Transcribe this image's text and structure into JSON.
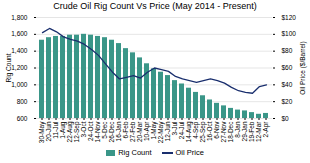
{
  "chart_data": {
    "type": "bar",
    "title": "Crude Oil Rig Count Vs Price (May 2014 - Present)",
    "categories": [
      "30-May",
      "20-Jun",
      "11-Jul",
      "1-Aug",
      "22-Aug",
      "12-Sep",
      "3-Oct",
      "24-Oct",
      "14-Nov",
      "5-Dec",
      "26-Dec",
      "16-Jan",
      "6-Feb",
      "27-Feb",
      "20-Mar",
      "10-Apr",
      "1-May",
      "22-May",
      "12-Jun",
      "3-Jul",
      "24-Jul",
      "14-Aug",
      "4-Sep",
      "25-Sep",
      "16-Oct",
      "6-Nov",
      "27-Nov",
      "18-Dec",
      "8-Jan",
      "29-Jan",
      "19-Feb",
      "12-Mar",
      "2-Apr"
    ],
    "series": [
      {
        "name": "Rig Count",
        "type": "bar",
        "color": "#3a9688",
        "values": [
          1530,
          1560,
          1575,
          1575,
          1590,
          1590,
          1600,
          1590,
          1575,
          1560,
          1530,
          1490,
          1430,
          1380,
          1320,
          1250,
          1190,
          1150,
          1110,
          1050,
          1010,
          960,
          910,
          870,
          820,
          780,
          750,
          720,
          700,
          690,
          670,
          650,
          660
        ]
      },
      {
        "name": "Oil Price",
        "type": "line",
        "color": "#1a2f6e",
        "axis": "y2",
        "values": [
          102,
          107,
          103,
          97,
          94,
          92,
          88,
          82,
          75,
          65,
          55,
          47,
          49,
          51,
          48,
          55,
          60,
          58,
          56,
          50,
          47,
          45,
          43,
          45,
          47,
          45,
          42,
          37,
          33,
          31,
          30,
          38,
          40
        ]
      }
    ],
    "ylabel": "Rig Count",
    "y2label": "Oil Price ($/Barrel)",
    "ylim": [
      600,
      1800
    ],
    "yticks": [
      600,
      800,
      {
        "value": 1000,
        "label": "1,000"
      },
      {
        "value": 1200,
        "label": "1,200"
      },
      {
        "value": 1400,
        "label": "1,400"
      },
      {
        "value": 1600,
        "label": "1,600"
      },
      {
        "value": 1800,
        "label": "1,800"
      }
    ],
    "y2lim": [
      0,
      120
    ],
    "y2ticks": [
      {
        "value": 0,
        "label": "$0"
      },
      {
        "value": 20,
        "label": "$20"
      },
      {
        "value": 40,
        "label": "$40"
      },
      {
        "value": 60,
        "label": "$60"
      },
      {
        "value": 80,
        "label": "$80"
      },
      {
        "value": 100,
        "label": "$100"
      },
      {
        "value": 120,
        "label": "$120"
      }
    ],
    "grid": true,
    "legend": "bottom"
  }
}
